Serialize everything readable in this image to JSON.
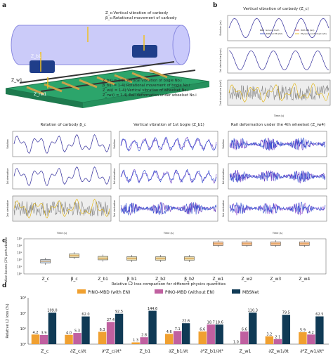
{
  "panels": {
    "a": "a",
    "b": "b",
    "c": "c",
    "d": "d"
  },
  "panel_a": {
    "annotations": [
      "Z_c:Vertical vibration of carbody",
      "β_c:Rotational movement of carbody",
      "Z_bi(i = 1-2):Vertical vibration of bogie No.i",
      "β_bi(i = 1-4):Rotational movement of bogie No.i",
      "Z_wi(i = 1-4):Vertical vibration of wheelset No.i",
      "Z_rwi(i = 1-4):Rail deformation under wheelset No.i"
    ],
    "labels": {
      "zc": "Z_c",
      "bc": "β_c",
      "zb": "Z_b1",
      "zw": "Z_w1",
      "zrw": "Z_rw1"
    }
  },
  "panel_b": {
    "title": "Vertical vibration of carbody (Z_c)",
    "legend": [
      "Ground truth",
      "With EN (G2)",
      "Without EN (V2)",
      "Physics-uninformed (V4)"
    ],
    "ylabels": [
      "Solution (m)",
      "1st derivative (m/s)",
      "2nd derivative (m/s²)"
    ],
    "xlabel": "Time (s)",
    "xticks": [
      "0.5",
      "1.0",
      "1.5",
      "2.0",
      "2.5",
      "3.0",
      "3.5",
      "4.0",
      "4.5"
    ]
  },
  "row_titles": {
    "left": "Rotation of carbody β_c",
    "mid": "Vertical vibration of 1st bogie (Z_b1)",
    "right": "Rail deformation under the 4th wheelset (Z_rw4)"
  },
  "row_ylabels": [
    "Solution",
    "1st derivative",
    "2nd derivative"
  ],
  "row_xlabel": "Time (s)",
  "panel_c": {
    "ylabel": "Equation losses (2% perturbation added)",
    "yticks": [
      "10⁰",
      "10¹",
      "10²",
      "10³",
      "10⁴",
      "10⁵"
    ],
    "categories": [
      "Z_c",
      "β_c",
      "Z_b1",
      "β_b1",
      "Z_b2",
      "β_b2",
      "Z_w1",
      "Z_w2",
      "Z_w3",
      "Z_w4"
    ]
  },
  "chart_data": {
    "type": "bar",
    "title": "Relative L2 loss comparison for different physics quantities",
    "ylabel": "Relative L2 loss (%)",
    "yscale": "log",
    "ylim": [
      1,
      1000
    ],
    "yticks": [
      "10⁰",
      "10¹",
      "10²",
      "10³"
    ],
    "categories": [
      "Z_c",
      "∂Z_c/∂t",
      "∂²Z_c/∂t²",
      "Z_b1",
      "∂Z_b1/∂t",
      "∂²Z_b1/∂t²",
      "Z_w1",
      "∂Z_w1/∂t",
      "∂²Z_w1/∂t²"
    ],
    "series": [
      {
        "name": "PINO-MBD (with EN)",
        "color": "#f0a030",
        "values": [
          4.2,
          4.0,
          6.3,
          1.3,
          4.6,
          6.6,
          1.0,
          3.2,
          5.9
        ]
      },
      {
        "name": "PINO-MBD (without EN)",
        "color": "#c060a0",
        "values": [
          3.9,
          5.3,
          27.4,
          2.8,
          7.1,
          18.7,
          6.6,
          2.1,
          4.2
        ]
      },
      {
        "name": "MBSNet",
        "color": "#103a55",
        "values": [
          109.0,
          62.0,
          92.5,
          144.6,
          22.6,
          18.6,
          110.3,
          79.5,
          62.5
        ]
      }
    ],
    "value_labels": [
      [
        "4.2",
        "3.9",
        "109.0"
      ],
      [
        "4.0",
        "5.3",
        "62.0"
      ],
      [
        "6.3",
        "27.4",
        "92.5"
      ],
      [
        "1.3",
        "2.8",
        "144.6"
      ],
      [
        "4.6",
        "7.1",
        "22.6"
      ],
      [
        "6.6",
        "18.7",
        "18.6"
      ],
      [
        "1.0",
        "6.6",
        "110.3"
      ],
      [
        "3.2",
        "2.1",
        "79.5"
      ],
      [
        "5.9",
        "4.2",
        "62.5"
      ]
    ]
  }
}
